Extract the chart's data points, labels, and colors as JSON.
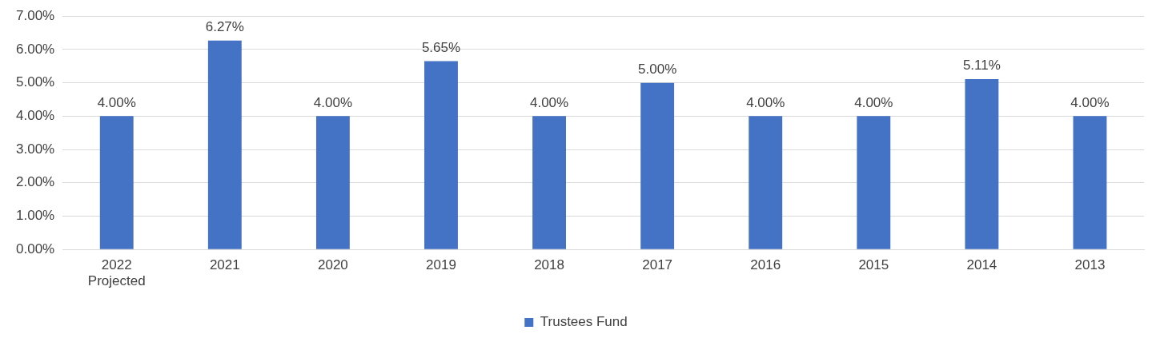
{
  "chart_data": {
    "type": "bar",
    "categories": [
      "2022\nProjected",
      "2021",
      "2020",
      "2019",
      "2018",
      "2017",
      "2016",
      "2015",
      "2014",
      "2013"
    ],
    "series": [
      {
        "name": "Trustees Fund",
        "color": "#4472c4",
        "values": [
          4.0,
          6.27,
          4.0,
          5.65,
          4.0,
          5.0,
          4.0,
          4.0,
          5.11,
          4.0
        ],
        "value_labels": [
          "4.00%",
          "6.27%",
          "4.00%",
          "5.65%",
          "4.00%",
          "5.00%",
          "4.00%",
          "4.00%",
          "5.11%",
          "4.00%"
        ]
      }
    ],
    "ylim": [
      0,
      7
    ],
    "yticks": [
      {
        "value": 0,
        "label": "0.00%"
      },
      {
        "value": 1,
        "label": "1.00%"
      },
      {
        "value": 2,
        "label": "2.00%"
      },
      {
        "value": 3,
        "label": "3.00%"
      },
      {
        "value": 4,
        "label": "4.00%"
      },
      {
        "value": 5,
        "label": "5.00%"
      },
      {
        "value": 6,
        "label": "6.00%"
      },
      {
        "value": 7,
        "label": "7.00%"
      }
    ],
    "grid": "y",
    "legend": "bottom"
  }
}
